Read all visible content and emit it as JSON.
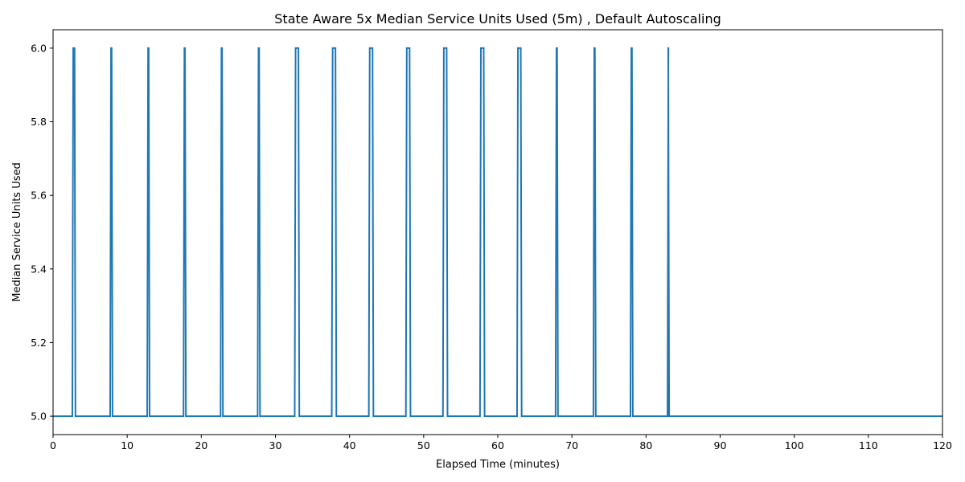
{
  "chart_data": {
    "type": "line",
    "title": "State Aware 5x Median Service Units Used (5m) , Default Autoscaling",
    "xlabel": "Elapsed Time (minutes)",
    "ylabel": "Median Service Units Used",
    "xlim": [
      0,
      120
    ],
    "ylim": [
      4.95,
      6.05
    ],
    "x_ticks": [
      0,
      10,
      20,
      30,
      40,
      50,
      60,
      70,
      80,
      90,
      100,
      110,
      120
    ],
    "x_tick_labels": [
      "0",
      "10",
      "20",
      "30",
      "40",
      "50",
      "60",
      "70",
      "80",
      "90",
      "100",
      "110",
      "120"
    ],
    "y_ticks": [
      5.0,
      5.2,
      5.4,
      5.6,
      5.8,
      6.0
    ],
    "y_tick_labels": [
      "5.0",
      "5.2",
      "5.4",
      "5.6",
      "5.8",
      "6.0"
    ],
    "grid": false,
    "legend": "none",
    "line_color": "#1f77b4",
    "baseline_value": 5.0,
    "peak_value": 6.0,
    "series": [
      {
        "values_description": "baseline 5.0 with brief spikes to 6.0",
        "spikes": [
          {
            "start": 2.6,
            "end": 2.9
          },
          {
            "start": 7.7,
            "end": 7.9
          },
          {
            "start": 12.7,
            "end": 12.9
          },
          {
            "start": 17.6,
            "end": 17.8
          },
          {
            "start": 22.6,
            "end": 22.8
          },
          {
            "start": 27.6,
            "end": 27.8
          },
          {
            "start": 32.6,
            "end": 33.1
          },
          {
            "start": 37.6,
            "end": 38.1
          },
          {
            "start": 42.6,
            "end": 43.1
          },
          {
            "start": 47.6,
            "end": 48.1
          },
          {
            "start": 52.6,
            "end": 53.1
          },
          {
            "start": 57.6,
            "end": 58.1
          },
          {
            "start": 62.6,
            "end": 63.1
          },
          {
            "start": 67.8,
            "end": 68.0
          },
          {
            "start": 72.9,
            "end": 73.1
          },
          {
            "start": 77.9,
            "end": 78.1
          },
          {
            "start": 82.9,
            "end": 83.0
          }
        ],
        "x_end": 120
      }
    ]
  }
}
